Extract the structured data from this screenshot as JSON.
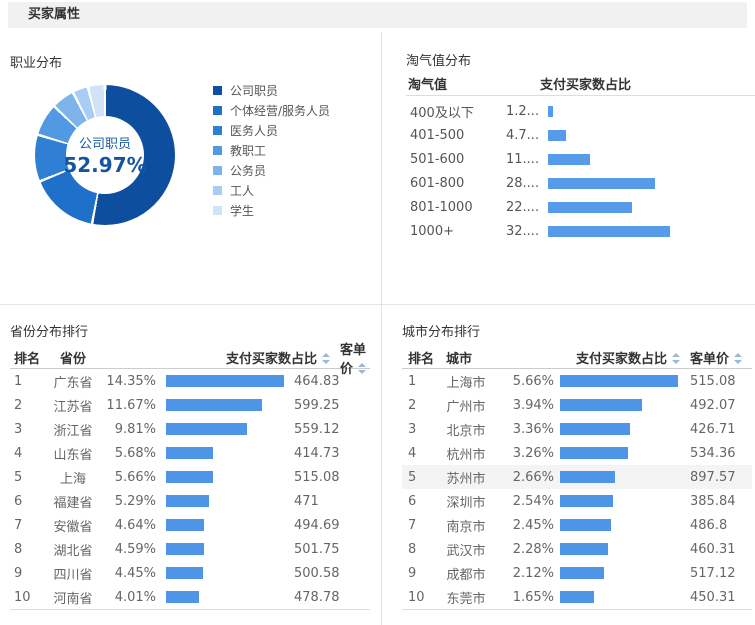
{
  "header": {
    "title": "买家属性"
  },
  "occupation": {
    "title": "职业分布",
    "center_label": "公司职员",
    "center_value": "52.97%",
    "center_text_color": "#1a5ca8",
    "slices": [
      {
        "label": "公司职员",
        "pct": 52.97,
        "color": "#0d4f9e"
      },
      {
        "label": "个体经营/服务人员",
        "pct": 15.9,
        "color": "#1f70c9"
      },
      {
        "label": "医务人员",
        "pct": 10.8,
        "color": "#2f80d4"
      },
      {
        "label": "教职工",
        "pct": 7.5,
        "color": "#5299e3"
      },
      {
        "label": "公务员",
        "pct": 5.3,
        "color": "#7fb3ec"
      },
      {
        "label": "工人",
        "pct": 3.6,
        "color": "#a8ccf4"
      },
      {
        "label": "学生",
        "pct": 3.93,
        "color": "#d0e3f9"
      }
    ]
  },
  "taoqi": {
    "title": "淘气值分布",
    "columns": {
      "range": "淘气值",
      "share": "支付买家数占比"
    },
    "bar_color": "#569be9",
    "rows": [
      {
        "range": "400及以下",
        "share_display": "1.2...",
        "share_value": 1.2
      },
      {
        "range": "401-500",
        "share_display": "4.7...",
        "share_value": 4.7
      },
      {
        "range": "501-600",
        "share_display": "11....",
        "share_value": 11
      },
      {
        "range": "601-800",
        "share_display": "28....",
        "share_value": 28
      },
      {
        "range": "801-1000",
        "share_display": "22....",
        "share_value": 22
      },
      {
        "range": "1000+",
        "share_display": "32....",
        "share_value": 32
      }
    ]
  },
  "province_ranking": {
    "title": "省份分布排行",
    "columns": {
      "rank": "排名",
      "name": "省份",
      "share": "支付买家数占比",
      "price": "客单价"
    },
    "bar_color": "#4f95e7",
    "rows": [
      {
        "rank": "1",
        "name": "广东省",
        "share": "14.35%",
        "share_value": 14.35,
        "price": "464.83"
      },
      {
        "rank": "2",
        "name": "江苏省",
        "share": "11.67%",
        "share_value": 11.67,
        "price": "599.25"
      },
      {
        "rank": "3",
        "name": "浙江省",
        "share": "9.81%",
        "share_value": 9.81,
        "price": "559.12"
      },
      {
        "rank": "4",
        "name": "山东省",
        "share": "5.68%",
        "share_value": 5.68,
        "price": "414.73"
      },
      {
        "rank": "5",
        "name": "上海",
        "share": "5.66%",
        "share_value": 5.66,
        "price": "515.08"
      },
      {
        "rank": "6",
        "name": "福建省",
        "share": "5.29%",
        "share_value": 5.29,
        "price": "471"
      },
      {
        "rank": "7",
        "name": "安徽省",
        "share": "4.64%",
        "share_value": 4.64,
        "price": "494.69"
      },
      {
        "rank": "8",
        "name": "湖北省",
        "share": "4.59%",
        "share_value": 4.59,
        "price": "501.75"
      },
      {
        "rank": "9",
        "name": "四川省",
        "share": "4.45%",
        "share_value": 4.45,
        "price": "500.58"
      },
      {
        "rank": "10",
        "name": "河南省",
        "share": "4.01%",
        "share_value": 4.01,
        "price": "478.78"
      }
    ]
  },
  "city_ranking": {
    "title": "城市分布排行",
    "columns": {
      "rank": "排名",
      "name": "城市",
      "share": "支付买家数占比",
      "price": "客单价"
    },
    "bar_color": "#4f95e7",
    "rows": [
      {
        "rank": "1",
        "name": "上海市",
        "share": "5.66%",
        "share_value": 5.66,
        "price": "515.08"
      },
      {
        "rank": "2",
        "name": "广州市",
        "share": "3.94%",
        "share_value": 3.94,
        "price": "492.07"
      },
      {
        "rank": "3",
        "name": "北京市",
        "share": "3.36%",
        "share_value": 3.36,
        "price": "426.71"
      },
      {
        "rank": "4",
        "name": "杭州市",
        "share": "3.26%",
        "share_value": 3.26,
        "price": "534.36"
      },
      {
        "rank": "5",
        "name": "苏州市",
        "share": "2.66%",
        "share_value": 2.66,
        "price": "897.57",
        "highlighted": true
      },
      {
        "rank": "6",
        "name": "深圳市",
        "share": "2.54%",
        "share_value": 2.54,
        "price": "385.84"
      },
      {
        "rank": "7",
        "name": "南京市",
        "share": "2.45%",
        "share_value": 2.45,
        "price": "486.8"
      },
      {
        "rank": "8",
        "name": "武汉市",
        "share": "2.28%",
        "share_value": 2.28,
        "price": "460.31"
      },
      {
        "rank": "9",
        "name": "成都市",
        "share": "2.12%",
        "share_value": 2.12,
        "price": "517.12"
      },
      {
        "rank": "10",
        "name": "东莞市",
        "share": "1.65%",
        "share_value": 1.65,
        "price": "450.31"
      }
    ]
  }
}
